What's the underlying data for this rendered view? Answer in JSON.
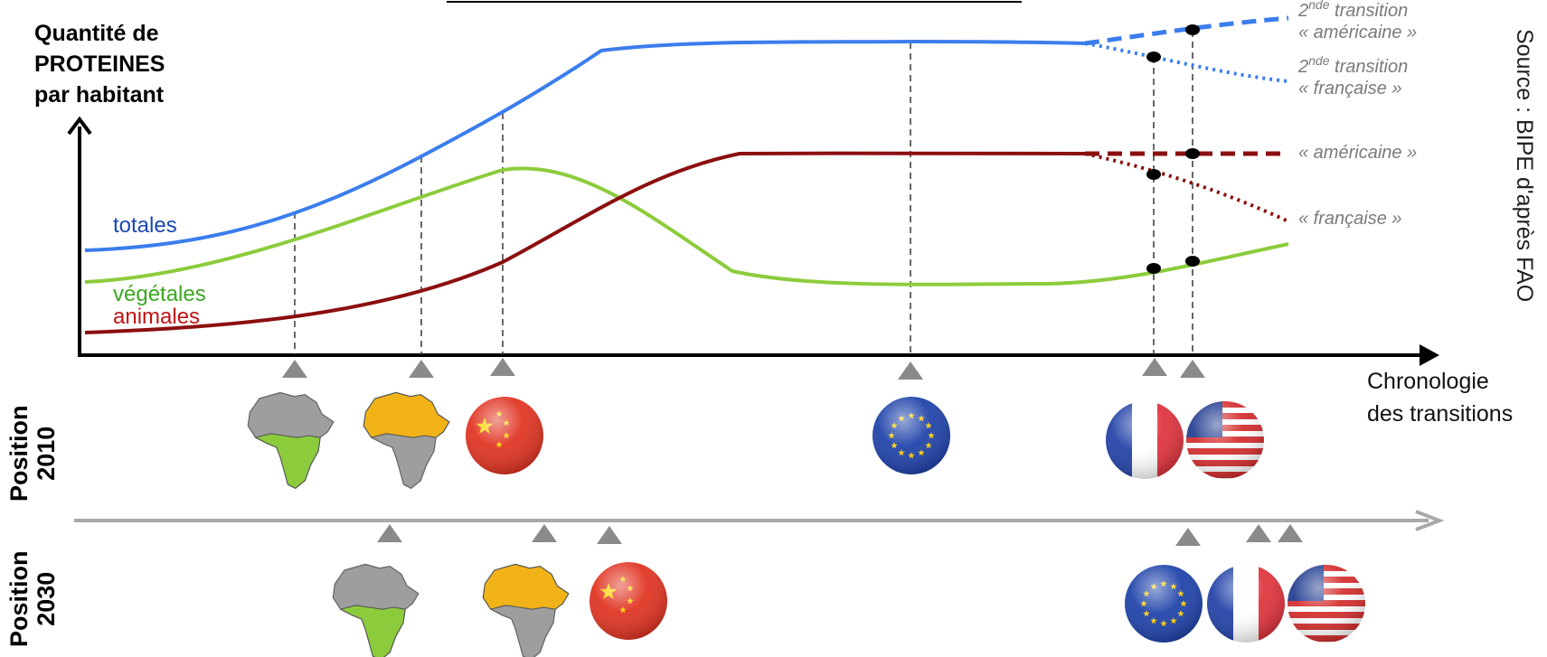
{
  "y_axis_title": [
    "Quantité de",
    "PROTEINES",
    "par habitant"
  ],
  "x_axis_title": [
    "Chronologie",
    "des transitions"
  ],
  "source": "Source : BIPE d'après FAO",
  "colors": {
    "totales": "#3b7ded",
    "vegetales": "#8ccc3c",
    "animales": "#8b0f0f",
    "annotation": "#7a7a7a",
    "marker": "#8a8a8a"
  },
  "series_labels": {
    "totales": "totales",
    "vegetales": "végétales",
    "animales": "animales"
  },
  "annotations": {
    "totales_us": {
      "sup": "nde",
      "pre": "2",
      "line1": " transition",
      "line2": "« américaine »"
    },
    "totales_fr": {
      "sup": "nde",
      "pre": "2",
      "line1": " transition",
      "line2": "« française »"
    },
    "animales_us": "« américaine »",
    "animales_fr": "« française »"
  },
  "positions": {
    "row_2010": {
      "word": "Position",
      "year": "2010"
    },
    "row_2030": {
      "word": "Position",
      "year": "2030"
    }
  },
  "row_2010_items": [
    {
      "id": "africa-subsaharan",
      "icon": "africa-green-map-icon"
    },
    {
      "id": "africa-north",
      "icon": "africa-north-highlight-map-icon"
    },
    {
      "id": "china",
      "icon": "china-flag-icon"
    },
    {
      "id": "eu",
      "icon": "eu-flag-icon"
    },
    {
      "id": "france",
      "icon": "france-flag-icon"
    },
    {
      "id": "usa",
      "icon": "usa-flag-icon"
    }
  ],
  "row_2030_items": [
    {
      "id": "africa-subsaharan",
      "icon": "africa-green-map-icon"
    },
    {
      "id": "africa-north",
      "icon": "africa-north-highlight-map-icon"
    },
    {
      "id": "china",
      "icon": "china-flag-icon"
    },
    {
      "id": "eu",
      "icon": "eu-flag-icon"
    },
    {
      "id": "france",
      "icon": "france-flag-icon"
    },
    {
      "id": "usa",
      "icon": "usa-flag-icon"
    }
  ]
}
